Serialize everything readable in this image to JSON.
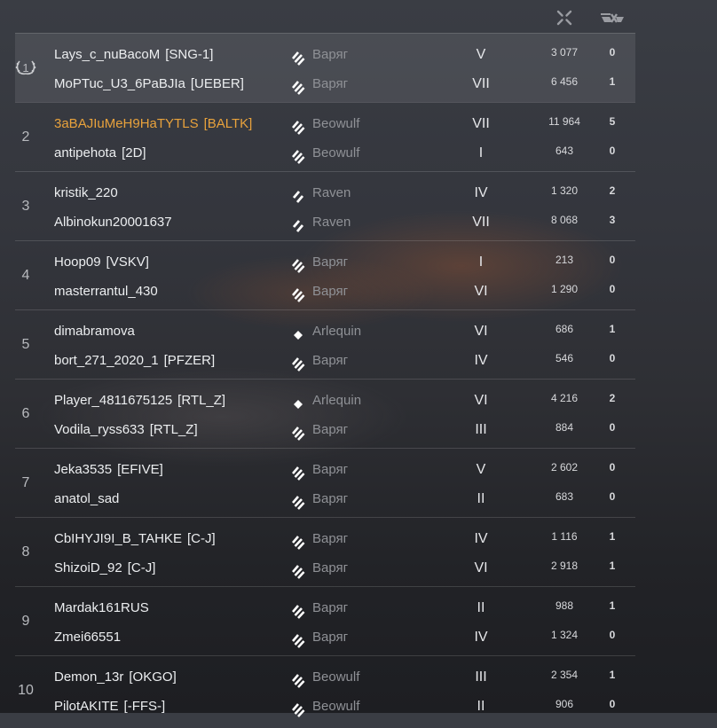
{
  "header": {
    "damage_icon": "crosshair-damage-icon",
    "kills_icon": "ship-destroyed-icon"
  },
  "colors": {
    "highlight_player": "#e8a23c",
    "text": "#eceef0",
    "ship_name": "#8f9196"
  },
  "teams": [
    {
      "rank": "1",
      "rank_icon": "laurel-wreath-icon",
      "players": [
        {
          "name": "Lays_c_nuBacoM",
          "clan": "[SNG-1]",
          "ship_class": "battleship",
          "ship": "Варяг",
          "tier": "V",
          "damage": "3 077",
          "kills": "0"
        },
        {
          "name": "MoPTuc_U3_6PaBJIa",
          "clan": "[UEBER]",
          "ship_class": "battleship",
          "ship": "Варяг",
          "tier": "VII",
          "damage": "6 456",
          "kills": "1"
        }
      ]
    },
    {
      "rank": "2",
      "players": [
        {
          "name": "3aBAJIuMeH9HaTYTLS",
          "clan": "[BALTK]",
          "highlight": true,
          "ship_class": "battleship",
          "ship": "Beowulf",
          "tier": "VII",
          "damage": "11 964",
          "kills": "5"
        },
        {
          "name": "antipehota",
          "clan": "[2D]",
          "ship_class": "battleship",
          "ship": "Beowulf",
          "tier": "I",
          "damage": "643",
          "kills": "0"
        }
      ]
    },
    {
      "rank": "3",
      "players": [
        {
          "name": "kristik_220",
          "clan": "",
          "ship_class": "cruiser",
          "ship": "Raven",
          "tier": "IV",
          "damage": "1 320",
          "kills": "2"
        },
        {
          "name": "Albinokun20001637",
          "clan": "",
          "ship_class": "cruiser",
          "ship": "Raven",
          "tier": "VII",
          "damage": "8 068",
          "kills": "3"
        }
      ]
    },
    {
      "rank": "4",
      "players": [
        {
          "name": "Hoop09",
          "clan": "[VSKV]",
          "ship_class": "battleship",
          "ship": "Варяг",
          "tier": "I",
          "damage": "213",
          "kills": "0"
        },
        {
          "name": "masterrantul_430",
          "clan": "",
          "ship_class": "battleship",
          "ship": "Варяг",
          "tier": "VI",
          "damage": "1 290",
          "kills": "0"
        }
      ]
    },
    {
      "rank": "5",
      "players": [
        {
          "name": "dimabramova",
          "clan": "",
          "ship_class": "destroyer",
          "ship": "Arlequin",
          "tier": "VI",
          "damage": "686",
          "kills": "1"
        },
        {
          "name": "bort_271_2020_1",
          "clan": "[PFZER]",
          "ship_class": "battleship",
          "ship": "Варяг",
          "tier": "IV",
          "damage": "546",
          "kills": "0"
        }
      ]
    },
    {
      "rank": "6",
      "players": [
        {
          "name": "Player_4811675125",
          "clan": "[RTL_Z]",
          "ship_class": "destroyer",
          "ship": "Arlequin",
          "tier": "VI",
          "damage": "4 216",
          "kills": "2"
        },
        {
          "name": "Vodila_ryss633",
          "clan": "[RTL_Z]",
          "ship_class": "battleship",
          "ship": "Варяг",
          "tier": "III",
          "damage": "884",
          "kills": "0"
        }
      ]
    },
    {
      "rank": "7",
      "players": [
        {
          "name": "Jeka3535",
          "clan": "[EFIVE]",
          "ship_class": "battleship",
          "ship": "Варяг",
          "tier": "V",
          "damage": "2 602",
          "kills": "0"
        },
        {
          "name": "anatol_sad",
          "clan": "",
          "ship_class": "battleship",
          "ship": "Варяг",
          "tier": "II",
          "damage": "683",
          "kills": "0"
        }
      ]
    },
    {
      "rank": "8",
      "players": [
        {
          "name": "CbIHYJI9I_B_TAHKE",
          "clan": "[C-J]",
          "ship_class": "battleship",
          "ship": "Варяг",
          "tier": "IV",
          "damage": "1 116",
          "kills": "1"
        },
        {
          "name": "ShizoiD_92",
          "clan": "[C-J]",
          "ship_class": "battleship",
          "ship": "Варяг",
          "tier": "VI",
          "damage": "2 918",
          "kills": "1"
        }
      ]
    },
    {
      "rank": "9",
      "players": [
        {
          "name": "Mardak161RUS",
          "clan": "",
          "ship_class": "battleship",
          "ship": "Варяг",
          "tier": "II",
          "damage": "988",
          "kills": "1"
        },
        {
          "name": "Zmei66551",
          "clan": "",
          "ship_class": "battleship",
          "ship": "Варяг",
          "tier": "IV",
          "damage": "1 324",
          "kills": "0"
        }
      ]
    },
    {
      "rank": "10",
      "players": [
        {
          "name": "Demon_13r",
          "clan": "[OKGO]",
          "ship_class": "battleship",
          "ship": "Beowulf",
          "tier": "III",
          "damage": "2 354",
          "kills": "1"
        },
        {
          "name": "PilotAKITE",
          "clan": "[-FFS-]",
          "ship_class": "battleship",
          "ship": "Beowulf",
          "tier": "II",
          "damage": "906",
          "kills": "0"
        }
      ]
    }
  ]
}
